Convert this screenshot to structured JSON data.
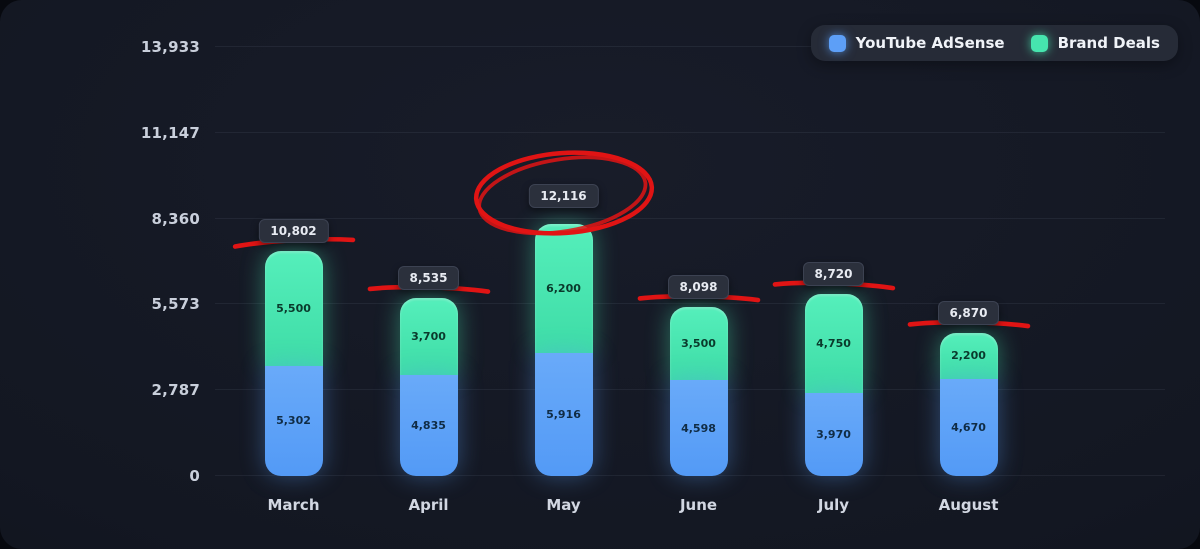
{
  "legend": {
    "items": [
      {
        "label": "YouTube AdSense",
        "color": "#5D9FF7"
      },
      {
        "label": "Brand Deals",
        "color": "#46E5AE"
      }
    ]
  },
  "colors": {
    "background": "#131722",
    "badge_background": "#2B303C",
    "annotation_red": "#E01414",
    "adsense_blue": "#5D9FF7",
    "brand_green": "#46E5AE"
  },
  "chart_data": {
    "type": "bar",
    "stacked": true,
    "title": "",
    "categories": [
      "March",
      "April",
      "May",
      "June",
      "July",
      "August"
    ],
    "series": [
      {
        "name": "YouTube AdSense",
        "color": "#5D9FF7",
        "values": [
          5302,
          4835,
          5916,
          4598,
          3970,
          4670
        ],
        "labels": [
          "5,302",
          "4,835",
          "5,916",
          "4,598",
          "3,970",
          "4,670"
        ]
      },
      {
        "name": "Brand Deals",
        "color": "#46E5AE",
        "values": [
          5500,
          3700,
          6200,
          3500,
          4750,
          2200
        ],
        "labels": [
          "5,500",
          "3,700",
          "6,200",
          "3,500",
          "4,750",
          "2,200"
        ]
      }
    ],
    "totals": [
      10802,
      8535,
      12116,
      8098,
      8720,
      6870
    ],
    "total_labels": [
      "10,802",
      "8,535",
      "12,116",
      "8,098",
      "8,720",
      "6,870"
    ],
    "y_ticks": [
      0,
      2787,
      5573,
      8360,
      11147,
      13933
    ],
    "y_tick_labels": [
      "0",
      "2,787",
      "5,573",
      "8,360",
      "11,147",
      "13,933"
    ],
    "ylim": [
      0,
      13933
    ],
    "grid": true,
    "legend_position": "top-right",
    "annotations": [
      {
        "category": "March",
        "type": "underline",
        "color": "#E01414"
      },
      {
        "category": "April",
        "type": "underline",
        "color": "#E01414"
      },
      {
        "category": "May",
        "type": "circle",
        "color": "#E01414",
        "note": "hand-drawn red circle around total badge"
      },
      {
        "category": "June",
        "type": "underline",
        "color": "#E01414"
      },
      {
        "category": "July",
        "type": "underline",
        "color": "#E01414"
      },
      {
        "category": "August",
        "type": "underline",
        "color": "#E01414"
      }
    ]
  }
}
